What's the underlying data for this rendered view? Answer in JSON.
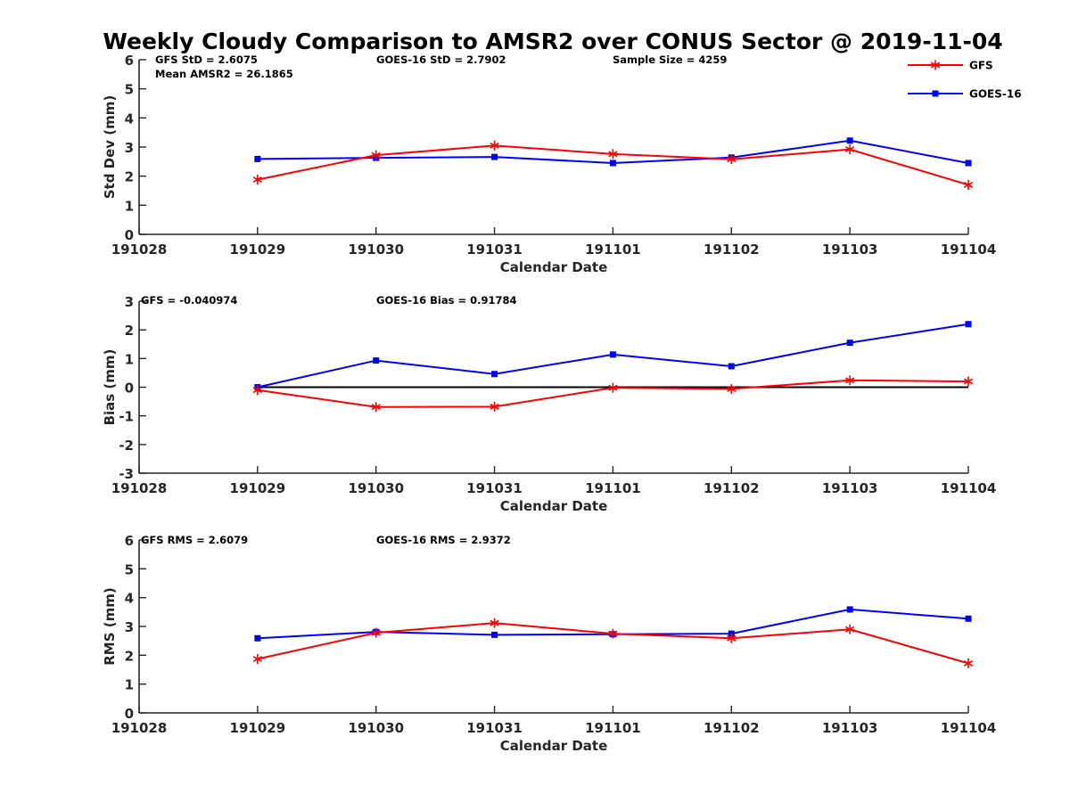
{
  "title": "Weekly Cloudy Comparison to AMSR2 over CONUS Sector @ 2019-11-04",
  "legend": {
    "placement": "top-right",
    "entries": [
      {
        "label": "GFS",
        "color": "#ff0000",
        "marker": "asterisk"
      },
      {
        "label": "GOES-16",
        "color": "#0000ff",
        "marker": "square"
      }
    ]
  },
  "chart_data": [
    {
      "type": "line",
      "xlabel": "Calendar Date",
      "ylabel": "Std Dev (mm)",
      "x_ticks": [
        "191028",
        "191029",
        "191030",
        "191031",
        "191101",
        "191102",
        "191103",
        "191104"
      ],
      "ylim": [
        0,
        6
      ],
      "y_ticks": [
        "0",
        "1",
        "2",
        "3",
        "4",
        "5",
        "6"
      ],
      "annotations": [
        "GFS StD = 2.6075",
        "GOES-16 StD = 2.7902",
        "Sample Size = 4259",
        "Mean AMSR2 = 26.1865"
      ],
      "series": [
        {
          "name": "GFS",
          "color": "#ff0000",
          "marker": "asterisk",
          "x": [
            "191029",
            "191030",
            "191031",
            "191101",
            "191102",
            "191103",
            "191104"
          ],
          "values": [
            1.88,
            2.72,
            3.05,
            2.76,
            2.58,
            2.92,
            1.7
          ]
        },
        {
          "name": "GOES-16",
          "color": "#0000ff",
          "marker": "square",
          "x": [
            "191029",
            "191030",
            "191031",
            "191101",
            "191102",
            "191103",
            "191104"
          ],
          "values": [
            2.59,
            2.63,
            2.66,
            2.45,
            2.64,
            3.22,
            2.45
          ]
        }
      ]
    },
    {
      "type": "line",
      "xlabel": "Calendar Date",
      "ylabel": "Bias (mm)",
      "x_ticks": [
        "191028",
        "191029",
        "191030",
        "191031",
        "191101",
        "191102",
        "191103",
        "191104"
      ],
      "ylim": [
        -3,
        3
      ],
      "y_ticks": [
        "-3",
        "-2",
        "-1",
        "0",
        "1",
        "2",
        "3"
      ],
      "zero_line": true,
      "annotations": [
        "GFS = -0.040974",
        "GOES-16 Bias  = 0.91784"
      ],
      "series": [
        {
          "name": "GFS",
          "color": "#ff0000",
          "marker": "asterisk",
          "x": [
            "191029",
            "191030",
            "191031",
            "191101",
            "191102",
            "191103",
            "191104"
          ],
          "values": [
            -0.1,
            -0.69,
            -0.68,
            -0.02,
            -0.06,
            0.24,
            0.2
          ]
        },
        {
          "name": "GOES-16",
          "color": "#0000ff",
          "marker": "square",
          "x": [
            "191029",
            "191030",
            "191031",
            "191101",
            "191102",
            "191103",
            "191104"
          ],
          "values": [
            0.0,
            0.93,
            0.46,
            1.14,
            0.73,
            1.55,
            2.2
          ]
        }
      ]
    },
    {
      "type": "line",
      "xlabel": "Calendar Date",
      "ylabel": "RMS (mm)",
      "x_ticks": [
        "191028",
        "191029",
        "191030",
        "191031",
        "191101",
        "191102",
        "191103",
        "191104"
      ],
      "ylim": [
        0,
        6
      ],
      "y_ticks": [
        "0",
        "1",
        "2",
        "3",
        "4",
        "5",
        "6"
      ],
      "annotations": [
        "GFS RMS = 2.6079",
        "GOES-16 RMS = 2.9372"
      ],
      "series": [
        {
          "name": "GFS",
          "color": "#ff0000",
          "marker": "asterisk",
          "x": [
            "191029",
            "191030",
            "191031",
            "191101",
            "191102",
            "191103",
            "191104"
          ],
          "values": [
            1.87,
            2.78,
            3.12,
            2.75,
            2.59,
            2.9,
            1.72
          ]
        },
        {
          "name": "GOES-16",
          "color": "#0000ff",
          "marker": "square",
          "x": [
            "191029",
            "191030",
            "191031",
            "191101",
            "191102",
            "191103",
            "191104"
          ],
          "values": [
            2.59,
            2.81,
            2.71,
            2.73,
            2.75,
            3.59,
            3.27
          ]
        }
      ]
    }
  ]
}
